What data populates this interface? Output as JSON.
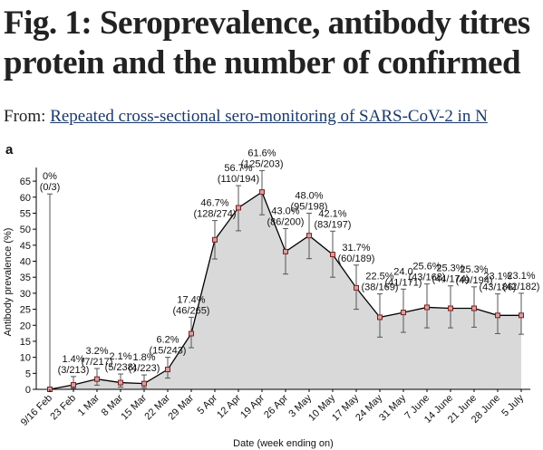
{
  "header": {
    "title_lines": [
      "Fig. 1: Seroprevalence, antibody titres",
      "protein and the number of confirmed"
    ],
    "from_label": "From:",
    "link": "Repeated cross-sectional sero-monitoring of SARS-CoV-2 in N"
  },
  "chart_data": {
    "type": "line",
    "panel": "a",
    "x_label": "Date (week ending on)",
    "y_label": "Antibody prevalence (%)",
    "categories": [
      "9/16 Feb",
      "23 Feb",
      "1 Mar",
      "8 Mar",
      "15 Mar",
      "22 Mar",
      "29 Mar",
      "5 Apr",
      "12 Apr",
      "19 Apr",
      "26 Apr",
      "3 May",
      "10 May",
      "17 May",
      "24 May",
      "31 May",
      "7 June",
      "14 June",
      "21 June",
      "28 June",
      "5 July"
    ],
    "values": [
      0,
      1.4,
      3.2,
      2.1,
      1.8,
      6.2,
      17.4,
      46.7,
      56.7,
      61.6,
      43.0,
      48.0,
      42.1,
      31.7,
      22.5,
      24.0,
      25.6,
      25.3,
      25.3,
      23.1,
      23.1
    ],
    "value_labels": [
      "0%",
      "1.4%",
      "3.2%",
      "2.1%",
      "1.8%",
      "6.2%",
      "17.4%",
      "46.7%",
      "56.7%",
      "61.6%",
      "43.0%",
      "48.0%",
      "42.1%",
      "31.7%",
      "22.5%",
      "24.0",
      "25.6%",
      "25.3%",
      "25.3%",
      "23.1%",
      "23.1%"
    ],
    "count_labels": [
      "(0/3)",
      "(3/213)",
      "(7/217)",
      "(5/238)",
      "(4/223)",
      "(15/243)",
      "(46/265)",
      "(128/274)",
      "(110/194)",
      "(125/203)",
      "(86/200)",
      "(95/198)",
      "(83/197)",
      "(60/189)",
      "(38/169)",
      "(41/171)",
      "(43/168)",
      "(44/174)",
      "(49/194)",
      "(43/186)",
      "(42/182)"
    ],
    "ci_low": [
      0,
      0.3,
      1.3,
      0.7,
      0.5,
      3.5,
      13,
      40.7,
      49.5,
      54.5,
      36,
      40.8,
      35,
      25,
      16.3,
      17.8,
      19.2,
      19.2,
      19.4,
      17.4,
      17.2
    ],
    "ci_high": [
      61,
      4,
      6.5,
      4.8,
      4.5,
      10,
      22.5,
      52.7,
      63.6,
      68.3,
      50.2,
      55,
      49.4,
      38.8,
      29.8,
      31.3,
      32.9,
      32.3,
      32,
      29.8,
      30
    ],
    "ylim": [
      0,
      67
    ],
    "yticks": [
      0,
      5,
      10,
      15,
      20,
      25,
      30,
      35,
      40,
      45,
      50,
      55,
      60,
      65
    ],
    "line_color": "#000000",
    "area_color": "#d9d9d9",
    "marker_color": "#d9a0a0",
    "marker_edge": "#7a1f1f",
    "errorbar_color": "#555555"
  }
}
